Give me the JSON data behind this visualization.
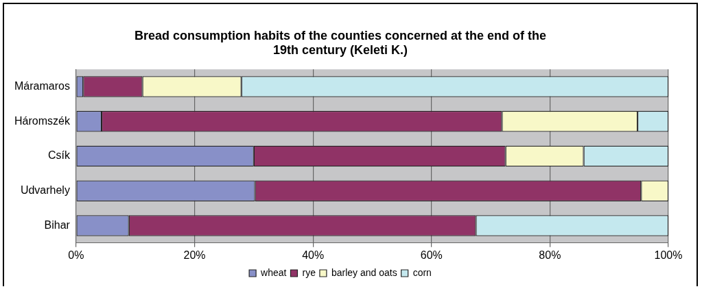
{
  "chart_data": {
    "type": "bar",
    "orientation": "horizontal",
    "stacked": true,
    "title": "Bread consumption habits of the counties concerned at the end of the 19th century (Keleti K.)",
    "categories": [
      "Máramaros",
      "Háromszék",
      "Csík",
      "Udvarhely",
      "Bihar"
    ],
    "series": [
      {
        "name": "wheat",
        "color": "#8890c8",
        "values": [
          1.2,
          4.3,
          30.0,
          30.2,
          8.9
        ]
      },
      {
        "name": "rye",
        "color": "#903366",
        "values": [
          10.0,
          67.6,
          42.5,
          65.2,
          58.6
        ]
      },
      {
        "name": "barley and oats",
        "color": "#f8f8c8",
        "values": [
          16.7,
          22.9,
          13.2,
          4.6,
          0
        ]
      },
      {
        "name": "corn",
        "color": "#c4e8ee",
        "values": [
          72.1,
          5.2,
          14.3,
          0,
          32.5
        ]
      }
    ],
    "xlim": [
      0,
      100
    ],
    "xticks": [
      {
        "value": 0,
        "label": "0%"
      },
      {
        "value": 20,
        "label": "20%"
      },
      {
        "value": 40,
        "label": "40%"
      },
      {
        "value": 60,
        "label": "60%"
      },
      {
        "value": 80,
        "label": "80%"
      },
      {
        "value": 100,
        "label": "100%"
      }
    ],
    "grid": "x",
    "legend": "bottom"
  }
}
